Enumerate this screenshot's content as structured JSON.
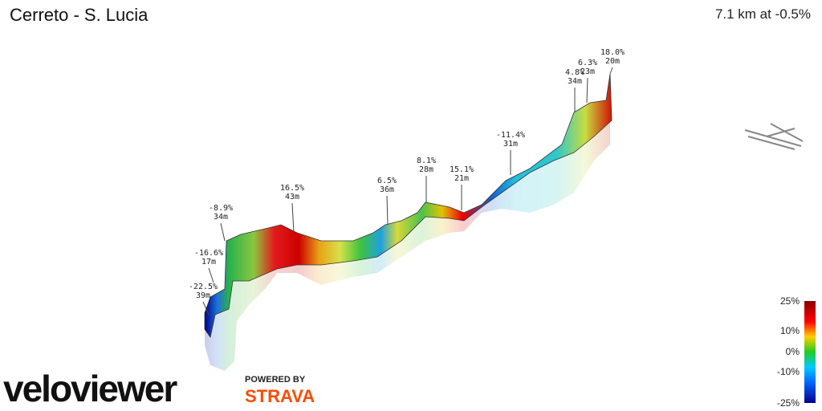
{
  "header": {
    "title": "Cerreto - S. Lucia",
    "summary": "7.1 km at -0.5%"
  },
  "annotations": [
    {
      "grade": "-22.5%",
      "distance": "39m"
    },
    {
      "grade": "-16.6%",
      "distance": "17m"
    },
    {
      "grade": "-8.9%",
      "distance": "34m"
    },
    {
      "grade": "16.5%",
      "distance": "43m"
    },
    {
      "grade": "6.5%",
      "distance": "36m"
    },
    {
      "grade": "8.1%",
      "distance": "28m"
    },
    {
      "grade": "15.1%",
      "distance": "21m"
    },
    {
      "grade": "-11.4%",
      "distance": "31m"
    },
    {
      "grade": "4.8%",
      "distance": "34m"
    },
    {
      "grade": "6.3%",
      "distance": "23m"
    },
    {
      "grade": "18.0%",
      "distance": "20m"
    }
  ],
  "legend": {
    "ticks": [
      "25%",
      "10%",
      "0%",
      "-10%",
      "-25%"
    ]
  },
  "branding": {
    "logo": "veloviewer",
    "powered_by": "POWERED BY",
    "partner": "STRAVA"
  }
}
